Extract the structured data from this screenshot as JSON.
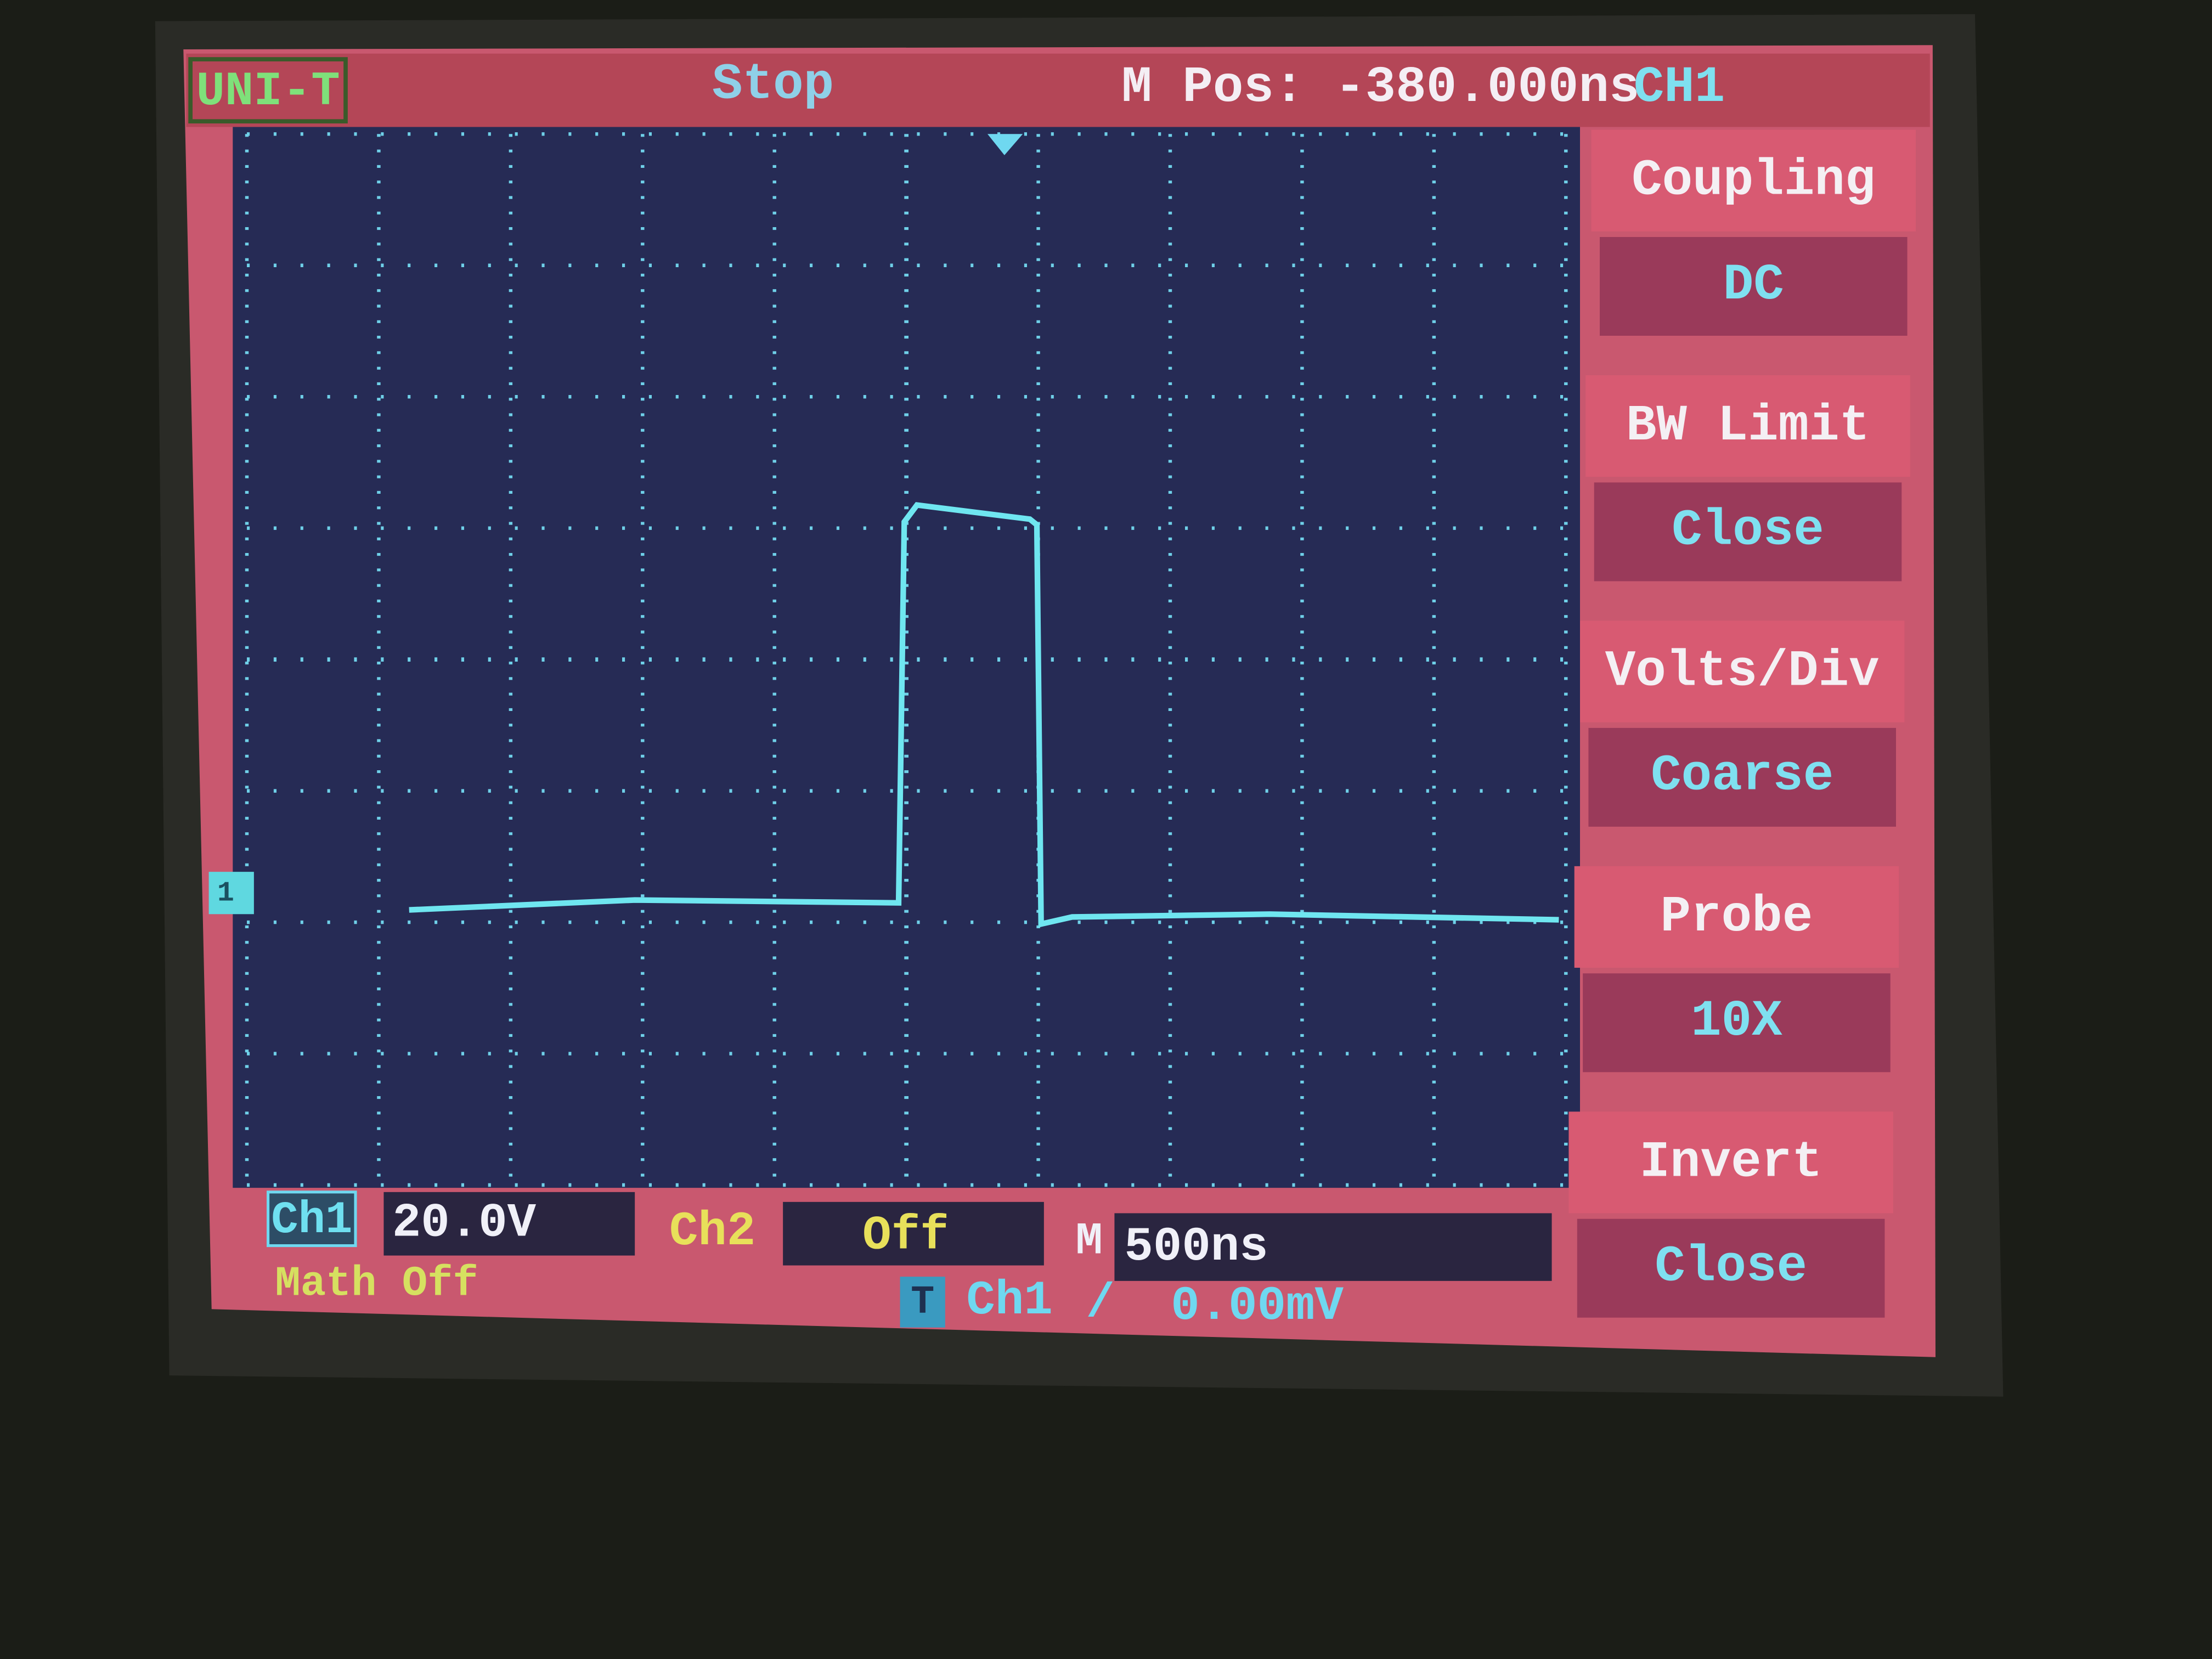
{
  "header": {
    "brand": "UNI-T",
    "status": "Stop",
    "position": "M Pos: -380.000ns",
    "position_channel": "CH1"
  },
  "channel_marker": "1",
  "menu": [
    {
      "label": "Coupling",
      "value": "DC"
    },
    {
      "label": "BW  Limit",
      "value": "Close"
    },
    {
      "label": "Volts/Div",
      "value": "Coarse"
    },
    {
      "label": "Probe",
      "value": "10X"
    },
    {
      "label": "Invert",
      "value": "Close"
    }
  ],
  "footer": {
    "ch1_label": "Ch1",
    "ch1_scale": "20.0V",
    "ch2_label": "Ch2",
    "ch2_state": "Off",
    "time_label": "M",
    "time_base": "500ns",
    "math": "Math Off",
    "trigger_label": "T",
    "trigger_source": "Ch1",
    "trigger_slope": "/",
    "trigger_level": "0.00mV"
  }
}
